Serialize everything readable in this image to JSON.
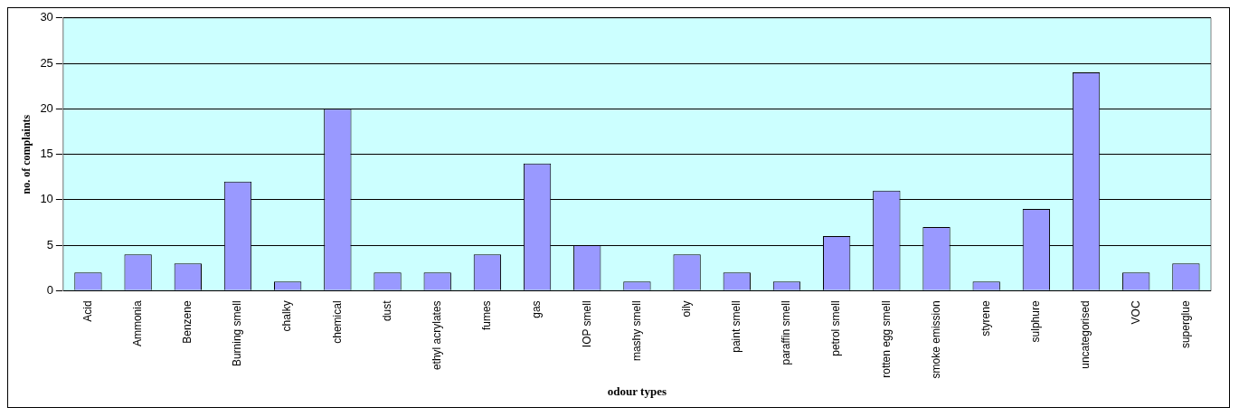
{
  "chart_data": {
    "type": "bar",
    "xlabel": "odour types",
    "ylabel": "no. of complaints",
    "categories": [
      "Acid",
      "Ammonia",
      "Benzene",
      "Burning smell",
      "chalky",
      "chemical",
      "dust",
      "ethyl acrylates",
      "fumes",
      "gas",
      "IOP smell",
      "mashy smell",
      "oily",
      "paint smell",
      "paraffin smell",
      "petrol smell",
      "rotten egg smell",
      "smoke emission",
      "styrene",
      "sulphure",
      "uncategorised",
      "VOC",
      "superglue"
    ],
    "values": [
      2,
      4,
      3,
      12,
      1,
      20,
      2,
      2,
      4,
      14,
      5,
      1,
      4,
      2,
      1,
      6,
      11,
      7,
      1,
      9,
      24,
      2,
      3
    ],
    "color": "#9999ff",
    "ylim": [
      0,
      30
    ],
    "yticks": [
      0,
      5,
      10,
      15,
      20,
      25,
      30
    ],
    "grid": "y",
    "legend": false
  }
}
